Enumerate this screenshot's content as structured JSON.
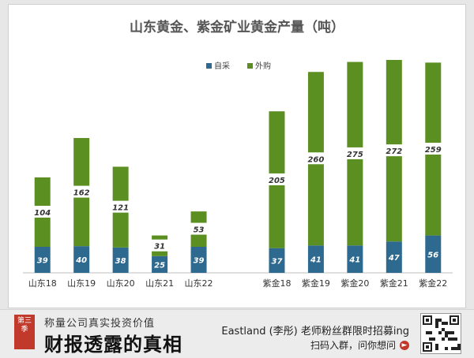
{
  "chart_data": {
    "type": "bar",
    "stacked": true,
    "title": "山东黄金、紫金矿业黄金产量（吨）",
    "categories": [
      "山东18",
      "山东19",
      "山东20",
      "山东21",
      "山东22",
      "",
      "紫金18",
      "紫金19",
      "紫金20",
      "紫金21",
      "紫金22"
    ],
    "series": [
      {
        "name": "自采",
        "color": "#2e6990",
        "values": [
          39,
          40,
          38,
          25,
          39,
          null,
          37,
          41,
          41,
          47,
          56
        ]
      },
      {
        "name": "外购",
        "color": "#5b8f22",
        "values": [
          104,
          162,
          121,
          31,
          53,
          null,
          205,
          260,
          275,
          272,
          259
        ]
      }
    ],
    "ylim": [
      0,
      345
    ],
    "legend_position": "top-center",
    "grid": false
  },
  "footer": {
    "season_badge": "第三季",
    "brand_sub": "称量公司真实投资价值",
    "brand_main": "财报透露的真相",
    "promo_line": "Eastland (李彤) 老师粉丝群限时招募ing",
    "promo_cta": "扫码入群，问你想问"
  }
}
